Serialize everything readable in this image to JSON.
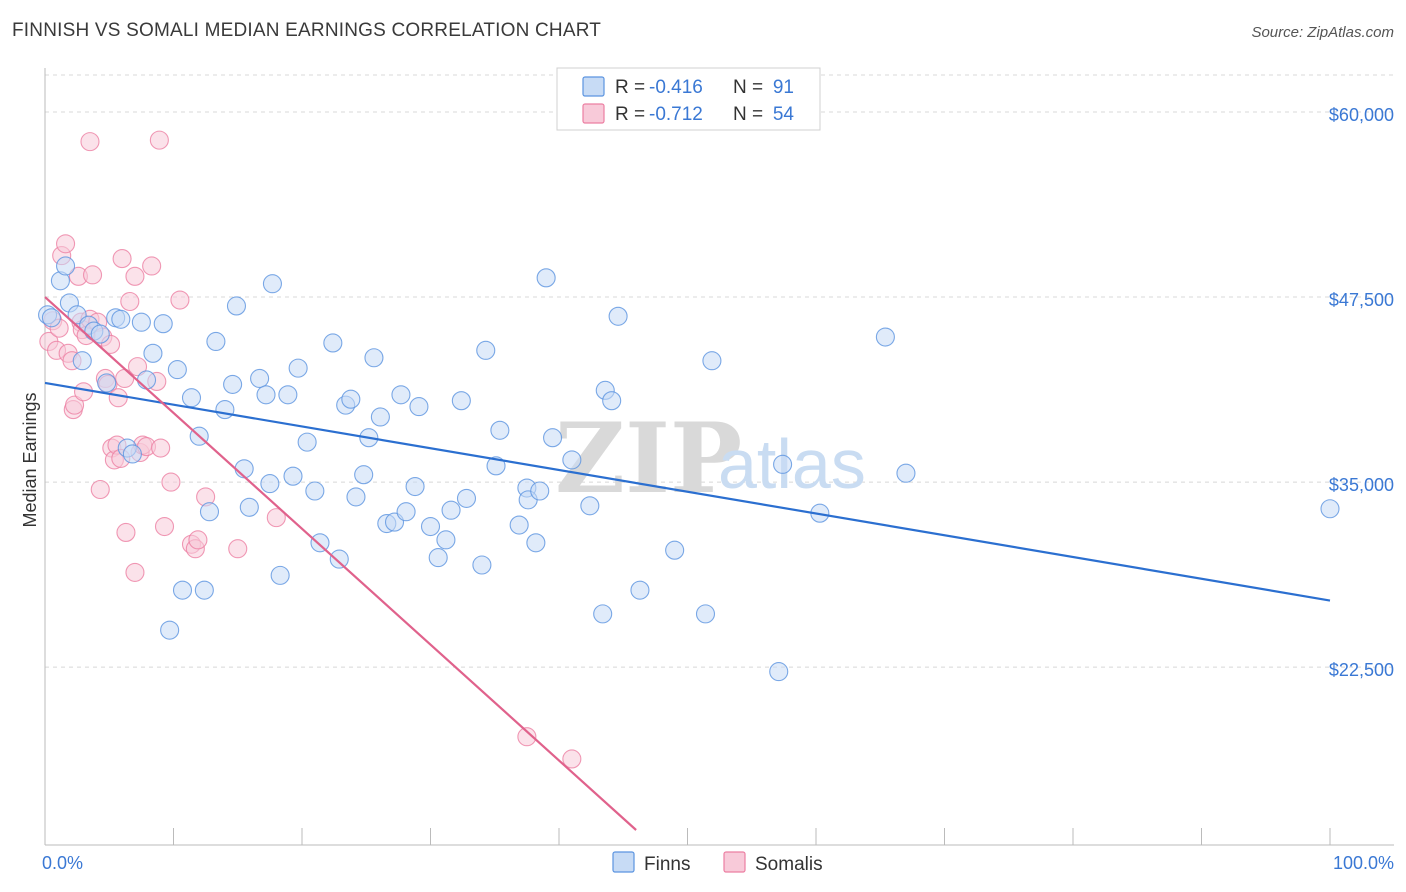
{
  "header": {
    "title": "FINNISH VS SOMALI MEDIAN EARNINGS CORRELATION CHART",
    "source": "Source: ZipAtlas.com"
  },
  "colors": {
    "finns": "#5b94e0",
    "finns_fill": "#c7dbf5",
    "somalis": "#ec7fa2",
    "somalis_fill": "#f8cad9",
    "finns_line": "#2b6fd0",
    "somalis_line": "#e0628c",
    "grid": "#d8d8d8",
    "axis_text": "#3a78d4"
  },
  "legend": {
    "rows": [
      {
        "r_label": "R = ",
        "r_value": "-0.416",
        "n_label": "N = ",
        "n_value": "91"
      },
      {
        "r_label": "R = ",
        "r_value": "-0.712",
        "n_label": "N = ",
        "n_value": "54"
      }
    ]
  },
  "watermark": {
    "zip": "ZIP",
    "atlas": "atlas"
  },
  "chart_data": {
    "type": "scatter",
    "title": "FINNISH VS SOMALI MEDIAN EARNINGS CORRELATION CHART",
    "xlabel": "",
    "ylabel": "Median Earnings",
    "xlim": [
      0,
      100
    ],
    "ylim": [
      11500,
      62500
    ],
    "x_tick_labels": [
      "0.0%",
      "100.0%"
    ],
    "y_ticks": [
      22500,
      35000,
      47500,
      60000
    ],
    "y_tick_labels": [
      "$22,500",
      "$35,000",
      "$47,500",
      "$60,000"
    ],
    "grid": true,
    "legend_position": "bottom-center",
    "series": [
      {
        "name": "Finns",
        "r": -0.416,
        "n": 91,
        "trend": {
          "x": [
            0,
            100
          ],
          "y": [
            41700,
            27000
          ]
        },
        "points": [
          [
            0.2,
            46300
          ],
          [
            0.5,
            46100
          ],
          [
            1.2,
            48600
          ],
          [
            1.6,
            49600
          ],
          [
            1.9,
            47100
          ],
          [
            2.5,
            46300
          ],
          [
            2.9,
            43200
          ],
          [
            3.4,
            45600
          ],
          [
            3.8,
            45200
          ],
          [
            4.3,
            45000
          ],
          [
            4.8,
            41700
          ],
          [
            5.5,
            46100
          ],
          [
            5.9,
            46000
          ],
          [
            6.4,
            37300
          ],
          [
            6.8,
            36900
          ],
          [
            7.5,
            45800
          ],
          [
            7.9,
            41900
          ],
          [
            8.4,
            43700
          ],
          [
            9.2,
            45700
          ],
          [
            9.7,
            25000
          ],
          [
            10.3,
            42600
          ],
          [
            10.7,
            27700
          ],
          [
            11.4,
            40700
          ],
          [
            12.0,
            38100
          ],
          [
            12.4,
            27700
          ],
          [
            12.8,
            33000
          ],
          [
            13.3,
            44500
          ],
          [
            14.0,
            39900
          ],
          [
            14.6,
            41600
          ],
          [
            14.9,
            46900
          ],
          [
            15.5,
            35900
          ],
          [
            15.9,
            33300
          ],
          [
            16.7,
            42000
          ],
          [
            17.2,
            40900
          ],
          [
            17.5,
            34900
          ],
          [
            17.7,
            48400
          ],
          [
            18.3,
            28700
          ],
          [
            18.9,
            40900
          ],
          [
            19.3,
            35400
          ],
          [
            19.7,
            42700
          ],
          [
            20.4,
            37700
          ],
          [
            21.0,
            34400
          ],
          [
            21.4,
            30900
          ],
          [
            22.4,
            44400
          ],
          [
            22.9,
            29800
          ],
          [
            23.4,
            40200
          ],
          [
            23.8,
            40600
          ],
          [
            24.2,
            34000
          ],
          [
            24.8,
            35500
          ],
          [
            25.2,
            38000
          ],
          [
            25.6,
            43400
          ],
          [
            26.1,
            39400
          ],
          [
            26.6,
            32200
          ],
          [
            27.2,
            32300
          ],
          [
            27.7,
            40900
          ],
          [
            28.1,
            33000
          ],
          [
            28.8,
            34700
          ],
          [
            29.1,
            40100
          ],
          [
            30.0,
            32000
          ],
          [
            30.6,
            29900
          ],
          [
            31.2,
            31100
          ],
          [
            31.6,
            33100
          ],
          [
            32.4,
            40500
          ],
          [
            32.8,
            33900
          ],
          [
            34.0,
            29400
          ],
          [
            34.3,
            43900
          ],
          [
            35.1,
            36100
          ],
          [
            35.4,
            38500
          ],
          [
            36.9,
            32100
          ],
          [
            37.5,
            34600
          ],
          [
            37.6,
            33800
          ],
          [
            38.2,
            30900
          ],
          [
            38.5,
            34400
          ],
          [
            39.0,
            48800
          ],
          [
            39.5,
            38000
          ],
          [
            41.0,
            36500
          ],
          [
            42.4,
            33400
          ],
          [
            43.4,
            26100
          ],
          [
            43.6,
            41200
          ],
          [
            44.1,
            40500
          ],
          [
            44.6,
            46200
          ],
          [
            46.3,
            27700
          ],
          [
            49.0,
            30400
          ],
          [
            51.4,
            26100
          ],
          [
            51.9,
            43200
          ],
          [
            57.1,
            22200
          ],
          [
            57.4,
            36200
          ],
          [
            60.3,
            32900
          ],
          [
            65.4,
            44800
          ],
          [
            67.0,
            35600
          ],
          [
            100,
            33200
          ]
        ]
      },
      {
        "name": "Somalis",
        "r": -0.712,
        "n": 54,
        "trend": {
          "x": [
            0,
            46.0
          ],
          "y": [
            47500,
            11500
          ]
        },
        "points": [
          [
            0.3,
            44500
          ],
          [
            0.6,
            45900
          ],
          [
            0.9,
            43900
          ],
          [
            1.1,
            45400
          ],
          [
            1.3,
            50300
          ],
          [
            1.6,
            51100
          ],
          [
            1.8,
            43700
          ],
          [
            2.1,
            43200
          ],
          [
            2.2,
            39900
          ],
          [
            2.3,
            40200
          ],
          [
            2.6,
            48900
          ],
          [
            2.8,
            45800
          ],
          [
            2.9,
            45300
          ],
          [
            3.0,
            41100
          ],
          [
            3.2,
            44900
          ],
          [
            3.5,
            46000
          ],
          [
            3.7,
            49000
          ],
          [
            4.1,
            45800
          ],
          [
            4.3,
            34500
          ],
          [
            4.5,
            44800
          ],
          [
            4.7,
            42000
          ],
          [
            4.9,
            41600
          ],
          [
            5.1,
            44300
          ],
          [
            5.2,
            37300
          ],
          [
            5.4,
            36500
          ],
          [
            5.6,
            37500
          ],
          [
            5.7,
            40700
          ],
          [
            5.9,
            36600
          ],
          [
            6.0,
            50100
          ],
          [
            6.2,
            42000
          ],
          [
            6.3,
            31600
          ],
          [
            6.6,
            47200
          ],
          [
            7.0,
            28900
          ],
          [
            7.0,
            48900
          ],
          [
            7.2,
            42800
          ],
          [
            7.4,
            37000
          ],
          [
            7.6,
            37500
          ],
          [
            7.9,
            37400
          ],
          [
            8.3,
            49600
          ],
          [
            8.7,
            41800
          ],
          [
            9.0,
            37300
          ],
          [
            9.3,
            32000
          ],
          [
            9.8,
            35000
          ],
          [
            10.5,
            47300
          ],
          [
            11.4,
            30800
          ],
          [
            11.7,
            30500
          ],
          [
            11.9,
            31100
          ],
          [
            12.5,
            34000
          ],
          [
            15.0,
            30500
          ],
          [
            18.0,
            32600
          ],
          [
            37.5,
            17800
          ],
          [
            41.0,
            16300
          ],
          [
            3.5,
            58000
          ],
          [
            8.9,
            58100
          ]
        ]
      }
    ]
  },
  "bottom_legend": [
    {
      "label": "Finns"
    },
    {
      "label": "Somalis"
    }
  ]
}
